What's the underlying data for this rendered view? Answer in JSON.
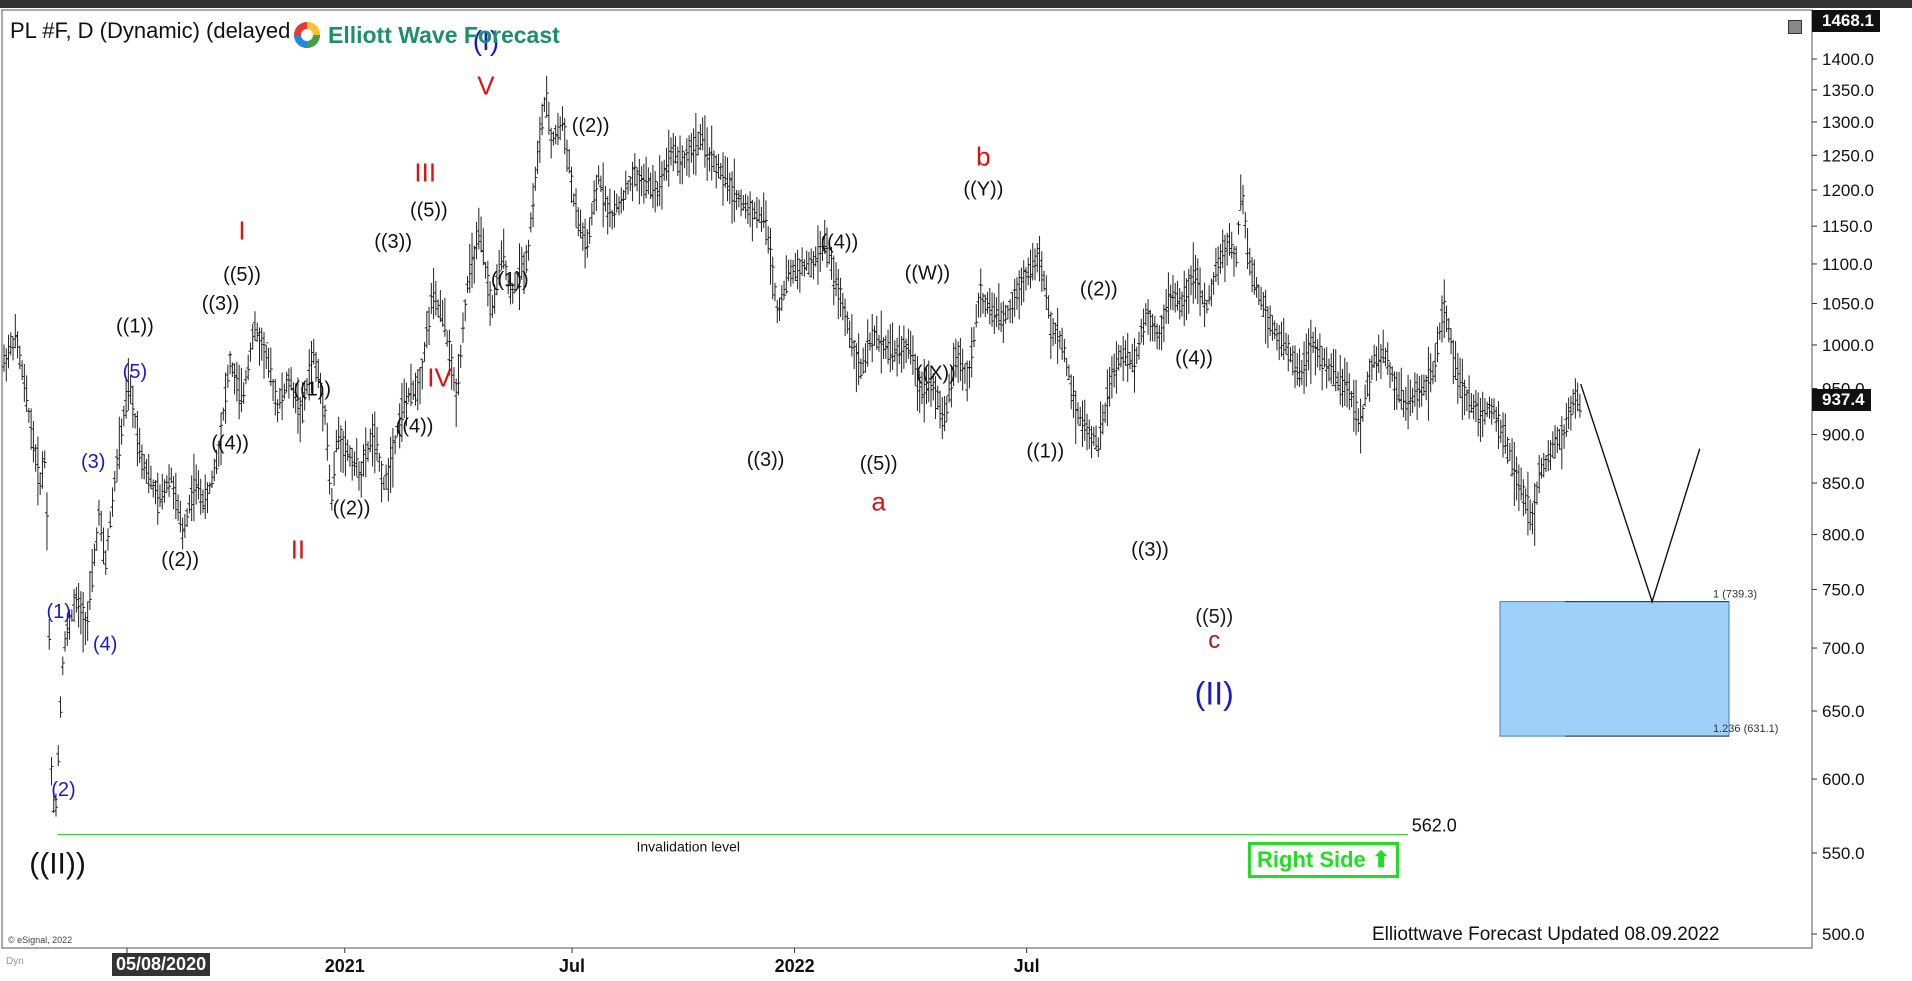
{
  "header": {
    "title": "PL #F, D (Dynamic) (delayed)",
    "logo_text": "Elliott Wave Forecast",
    "top_price": "1468.1",
    "last_price": "937.4"
  },
  "footer": {
    "right_side": "Right Side",
    "updated": "Elliottwave Forecast Updated 08.09.2022",
    "esignal": "© eSignal, 2022",
    "start_date": "05/08/2020",
    "dyn_label": "Dyn"
  },
  "colors": {
    "black": "#111111",
    "blue": "#1a1acc",
    "red": "#dd1111",
    "darkred": "#b01515",
    "green": "#22cc22",
    "box_fill": "#9fd0f8",
    "box_stroke": "#3a80c8"
  },
  "chart_data": {
    "type": "ohlc",
    "y_axis": {
      "range": [
        480,
        1468.1
      ],
      "ticks": [
        500,
        550,
        600,
        650,
        700,
        750,
        800,
        850,
        900,
        950,
        1000,
        1050,
        1100,
        1150,
        1200,
        1250,
        1300,
        1350,
        1400
      ],
      "tick_labels": [
        "500.0",
        "550.0",
        "600.0",
        "650.0",
        "700.0",
        "750.0",
        "800.0",
        "850.0",
        "900.0",
        "950.0",
        "1000.0",
        "1050.0",
        "1100.0",
        "1150.0",
        "1200.0",
        "1250.0",
        "1300.0",
        "1350.0",
        "1400.0"
      ],
      "scale": "log"
    },
    "x_axis": {
      "labels": [
        {
          "text": "Jul",
          "t": 0.1
        },
        {
          "text": "2021",
          "t": 0.283
        },
        {
          "text": "Jul",
          "t": 0.474
        },
        {
          "text": "2022",
          "t": 0.661
        },
        {
          "text": "Jul",
          "t": 0.856
        }
      ]
    },
    "price_path": [
      [
        0.0,
        980
      ],
      [
        0.01,
        1010
      ],
      [
        0.02,
        930
      ],
      [
        0.03,
        850
      ],
      [
        0.035,
        880
      ],
      [
        0.04,
        600
      ],
      [
        0.043,
        570
      ],
      [
        0.05,
        700
      ],
      [
        0.06,
        740
      ],
      [
        0.07,
        720
      ],
      [
        0.08,
        820
      ],
      [
        0.085,
        770
      ],
      [
        0.095,
        870
      ],
      [
        0.105,
        955
      ],
      [
        0.115,
        880
      ],
      [
        0.13,
        830
      ],
      [
        0.14,
        860
      ],
      [
        0.15,
        800
      ],
      [
        0.16,
        850
      ],
      [
        0.17,
        830
      ],
      [
        0.18,
        880
      ],
      [
        0.19,
        980
      ],
      [
        0.2,
        935
      ],
      [
        0.21,
        1020
      ],
      [
        0.22,
        990
      ],
      [
        0.23,
        930
      ],
      [
        0.24,
        960
      ],
      [
        0.25,
        920
      ],
      [
        0.26,
        990
      ],
      [
        0.27,
        925
      ],
      [
        0.275,
        825
      ],
      [
        0.28,
        900
      ],
      [
        0.29,
        880
      ],
      [
        0.3,
        860
      ],
      [
        0.31,
        900
      ],
      [
        0.32,
        845
      ],
      [
        0.335,
        930
      ],
      [
        0.35,
        960
      ],
      [
        0.36,
        1060
      ],
      [
        0.37,
        1030
      ],
      [
        0.38,
        940
      ],
      [
        0.39,
        1080
      ],
      [
        0.4,
        1140
      ],
      [
        0.41,
        1040
      ],
      [
        0.42,
        1120
      ],
      [
        0.425,
        1060
      ],
      [
        0.44,
        1110
      ],
      [
        0.45,
        1270
      ],
      [
        0.455,
        1340
      ],
      [
        0.46,
        1270
      ],
      [
        0.47,
        1300
      ],
      [
        0.48,
        1170
      ],
      [
        0.49,
        1120
      ],
      [
        0.5,
        1220
      ],
      [
        0.51,
        1160
      ],
      [
        0.53,
        1220
      ],
      [
        0.55,
        1200
      ],
      [
        0.56,
        1260
      ],
      [
        0.57,
        1240
      ],
      [
        0.585,
        1275
      ],
      [
        0.6,
        1230
      ],
      [
        0.62,
        1180
      ],
      [
        0.64,
        1160
      ],
      [
        0.65,
        1040
      ],
      [
        0.66,
        1090
      ],
      [
        0.68,
        1100
      ],
      [
        0.69,
        1130
      ],
      [
        0.7,
        1070
      ],
      [
        0.71,
        1020
      ],
      [
        0.72,
        970
      ],
      [
        0.73,
        1010
      ],
      [
        0.75,
        990
      ],
      [
        0.76,
        1000
      ],
      [
        0.77,
        950
      ],
      [
        0.78,
        960
      ],
      [
        0.79,
        910
      ],
      [
        0.8,
        990
      ],
      [
        0.81,
        960
      ],
      [
        0.82,
        1060
      ],
      [
        0.83,
        1040
      ],
      [
        0.84,
        1030
      ],
      [
        0.85,
        1060
      ],
      [
        0.86,
        1090
      ],
      [
        0.87,
        1110
      ],
      [
        0.88,
        1020
      ],
      [
        0.89,
        1000
      ],
      [
        0.9,
        930
      ],
      [
        0.91,
        905
      ],
      [
        0.92,
        890
      ],
      [
        0.93,
        960
      ],
      [
        0.94,
        990
      ],
      [
        0.95,
        980
      ],
      [
        0.96,
        1040
      ],
      [
        0.97,
        1010
      ],
      [
        0.98,
        1060
      ],
      [
        0.99,
        1050
      ],
      [
        1.0,
        1090
      ],
      [
        1.01,
        1040
      ],
      [
        1.02,
        1100
      ],
      [
        1.03,
        1130
      ],
      [
        1.035,
        1100
      ],
      [
        1.04,
        1200
      ],
      [
        1.045,
        1120
      ],
      [
        1.05,
        1080
      ],
      [
        1.06,
        1040
      ],
      [
        1.07,
        1010
      ],
      [
        1.08,
        990
      ],
      [
        1.09,
        970
      ],
      [
        1.1,
        1000
      ],
      [
        1.11,
        980
      ],
      [
        1.12,
        960
      ],
      [
        1.13,
        950
      ],
      [
        1.14,
        910
      ],
      [
        1.15,
        980
      ],
      [
        1.16,
        990
      ],
      [
        1.17,
        950
      ],
      [
        1.18,
        930
      ],
      [
        1.19,
        950
      ],
      [
        1.2,
        960
      ],
      [
        1.21,
        1040
      ],
      [
        1.215,
        1020
      ],
      [
        1.22,
        970
      ],
      [
        1.23,
        940
      ],
      [
        1.24,
        920
      ],
      [
        1.25,
        930
      ],
      [
        1.26,
        900
      ],
      [
        1.27,
        860
      ],
      [
        1.28,
        830
      ],
      [
        1.285,
        810
      ],
      [
        1.29,
        860
      ],
      [
        1.3,
        880
      ],
      [
        1.31,
        900
      ],
      [
        1.32,
        940
      ],
      [
        1.325,
        930
      ]
    ],
    "invalidation": {
      "value": 562.0,
      "value_label": "562.0",
      "label": "Invalidation level"
    },
    "target_box": {
      "top": 739.3,
      "bottom": 631.1,
      "top_label": "1 (739.3)",
      "bottom_label": "1.236 (631.1)"
    },
    "projection": [
      [
        1.325,
        955
      ],
      [
        1.385,
        739.3
      ],
      [
        1.425,
        885
      ]
    ],
    "wave_labels": [
      {
        "text": "((II))",
        "t": 0.045,
        "v": 537,
        "color": "black",
        "size": 30
      },
      {
        "text": "(1)",
        "t": 0.046,
        "v": 725,
        "color": "blue",
        "size": 20
      },
      {
        "text": "(2)",
        "t": 0.05,
        "v": 588,
        "color": "blue",
        "size": 20
      },
      {
        "text": "(3)",
        "t": 0.075,
        "v": 865,
        "color": "blue",
        "size": 20
      },
      {
        "text": "(4)",
        "t": 0.085,
        "v": 698,
        "color": "blue",
        "size": 20
      },
      {
        "text": "(5)",
        "t": 0.11,
        "v": 962,
        "color": "blue",
        "size": 20
      },
      {
        "text": "((1))",
        "t": 0.11,
        "v": 1015,
        "color": "black",
        "size": 20
      },
      {
        "text": "((2))",
        "t": 0.148,
        "v": 771,
        "color": "black",
        "size": 20
      },
      {
        "text": "((3))",
        "t": 0.182,
        "v": 1042,
        "color": "black",
        "size": 20
      },
      {
        "text": "((4))",
        "t": 0.19,
        "v": 884,
        "color": "black",
        "size": 20
      },
      {
        "text": "((5))",
        "t": 0.2,
        "v": 1078,
        "color": "black",
        "size": 20
      },
      {
        "text": "I",
        "t": 0.2,
        "v": 1132,
        "color": "red",
        "size": 26
      },
      {
        "text": "II",
        "t": 0.247,
        "v": 778,
        "color": "red",
        "size": 26
      },
      {
        "text": "((1))",
        "t": 0.259,
        "v": 942,
        "color": "black",
        "size": 20
      },
      {
        "text": "((2))",
        "t": 0.292,
        "v": 819,
        "color": "black",
        "size": 20
      },
      {
        "text": "((3))",
        "t": 0.327,
        "v": 1121,
        "color": "black",
        "size": 20
      },
      {
        "text": "((4))",
        "t": 0.345,
        "v": 902,
        "color": "black",
        "size": 20
      },
      {
        "text": "((5))",
        "t": 0.357,
        "v": 1163,
        "color": "black",
        "size": 20
      },
      {
        "text": "III",
        "t": 0.354,
        "v": 1212,
        "color": "red",
        "size": 26
      },
      {
        "text": "IV",
        "t": 0.366,
        "v": 952,
        "color": "red",
        "size": 26
      },
      {
        "text": "V",
        "t": 0.405,
        "v": 1343,
        "color": "red",
        "size": 26
      },
      {
        "text": "(I)",
        "t": 0.405,
        "v": 1415,
        "color": "blue",
        "size": 28
      },
      {
        "text": "((1))",
        "t": 0.425,
        "v": 1072,
        "color": "black",
        "size": 20
      },
      {
        "text": "((2))",
        "t": 0.493,
        "v": 1285,
        "color": "black",
        "size": 20
      },
      {
        "text": "((3))",
        "t": 0.64,
        "v": 867,
        "color": "black",
        "size": 20
      },
      {
        "text": "((4))",
        "t": 0.702,
        "v": 1120,
        "color": "black",
        "size": 20
      },
      {
        "text": "((5))",
        "t": 0.735,
        "v": 863,
        "color": "black",
        "size": 20
      },
      {
        "text": "a",
        "t": 0.735,
        "v": 823,
        "color": "red",
        "size": 26
      },
      {
        "text": "((W))",
        "t": 0.776,
        "v": 1080,
        "color": "black",
        "size": 20
      },
      {
        "text": "((X))",
        "t": 0.783,
        "v": 960,
        "color": "black",
        "size": 20
      },
      {
        "text": "((Y))",
        "t": 0.823,
        "v": 1192,
        "color": "black",
        "size": 20
      },
      {
        "text": "b",
        "t": 0.823,
        "v": 1235,
        "color": "red",
        "size": 26
      },
      {
        "text": "((1))",
        "t": 0.875,
        "v": 876,
        "color": "black",
        "size": 20
      },
      {
        "text": "((2))",
        "t": 0.92,
        "v": 1060,
        "color": "black",
        "size": 20
      },
      {
        "text": "((3))",
        "t": 0.963,
        "v": 780,
        "color": "black",
        "size": 20
      },
      {
        "text": "((4))",
        "t": 1.0,
        "v": 977,
        "color": "black",
        "size": 20
      },
      {
        "text": "((5))",
        "t": 1.017,
        "v": 721,
        "color": "darkblack",
        "size": 20
      },
      {
        "text": "c",
        "t": 1.017,
        "v": 700,
        "color": "darkred",
        "size": 24
      },
      {
        "text": "(II)",
        "t": 1.017,
        "v": 655,
        "color": "blue",
        "size": 32
      }
    ]
  }
}
